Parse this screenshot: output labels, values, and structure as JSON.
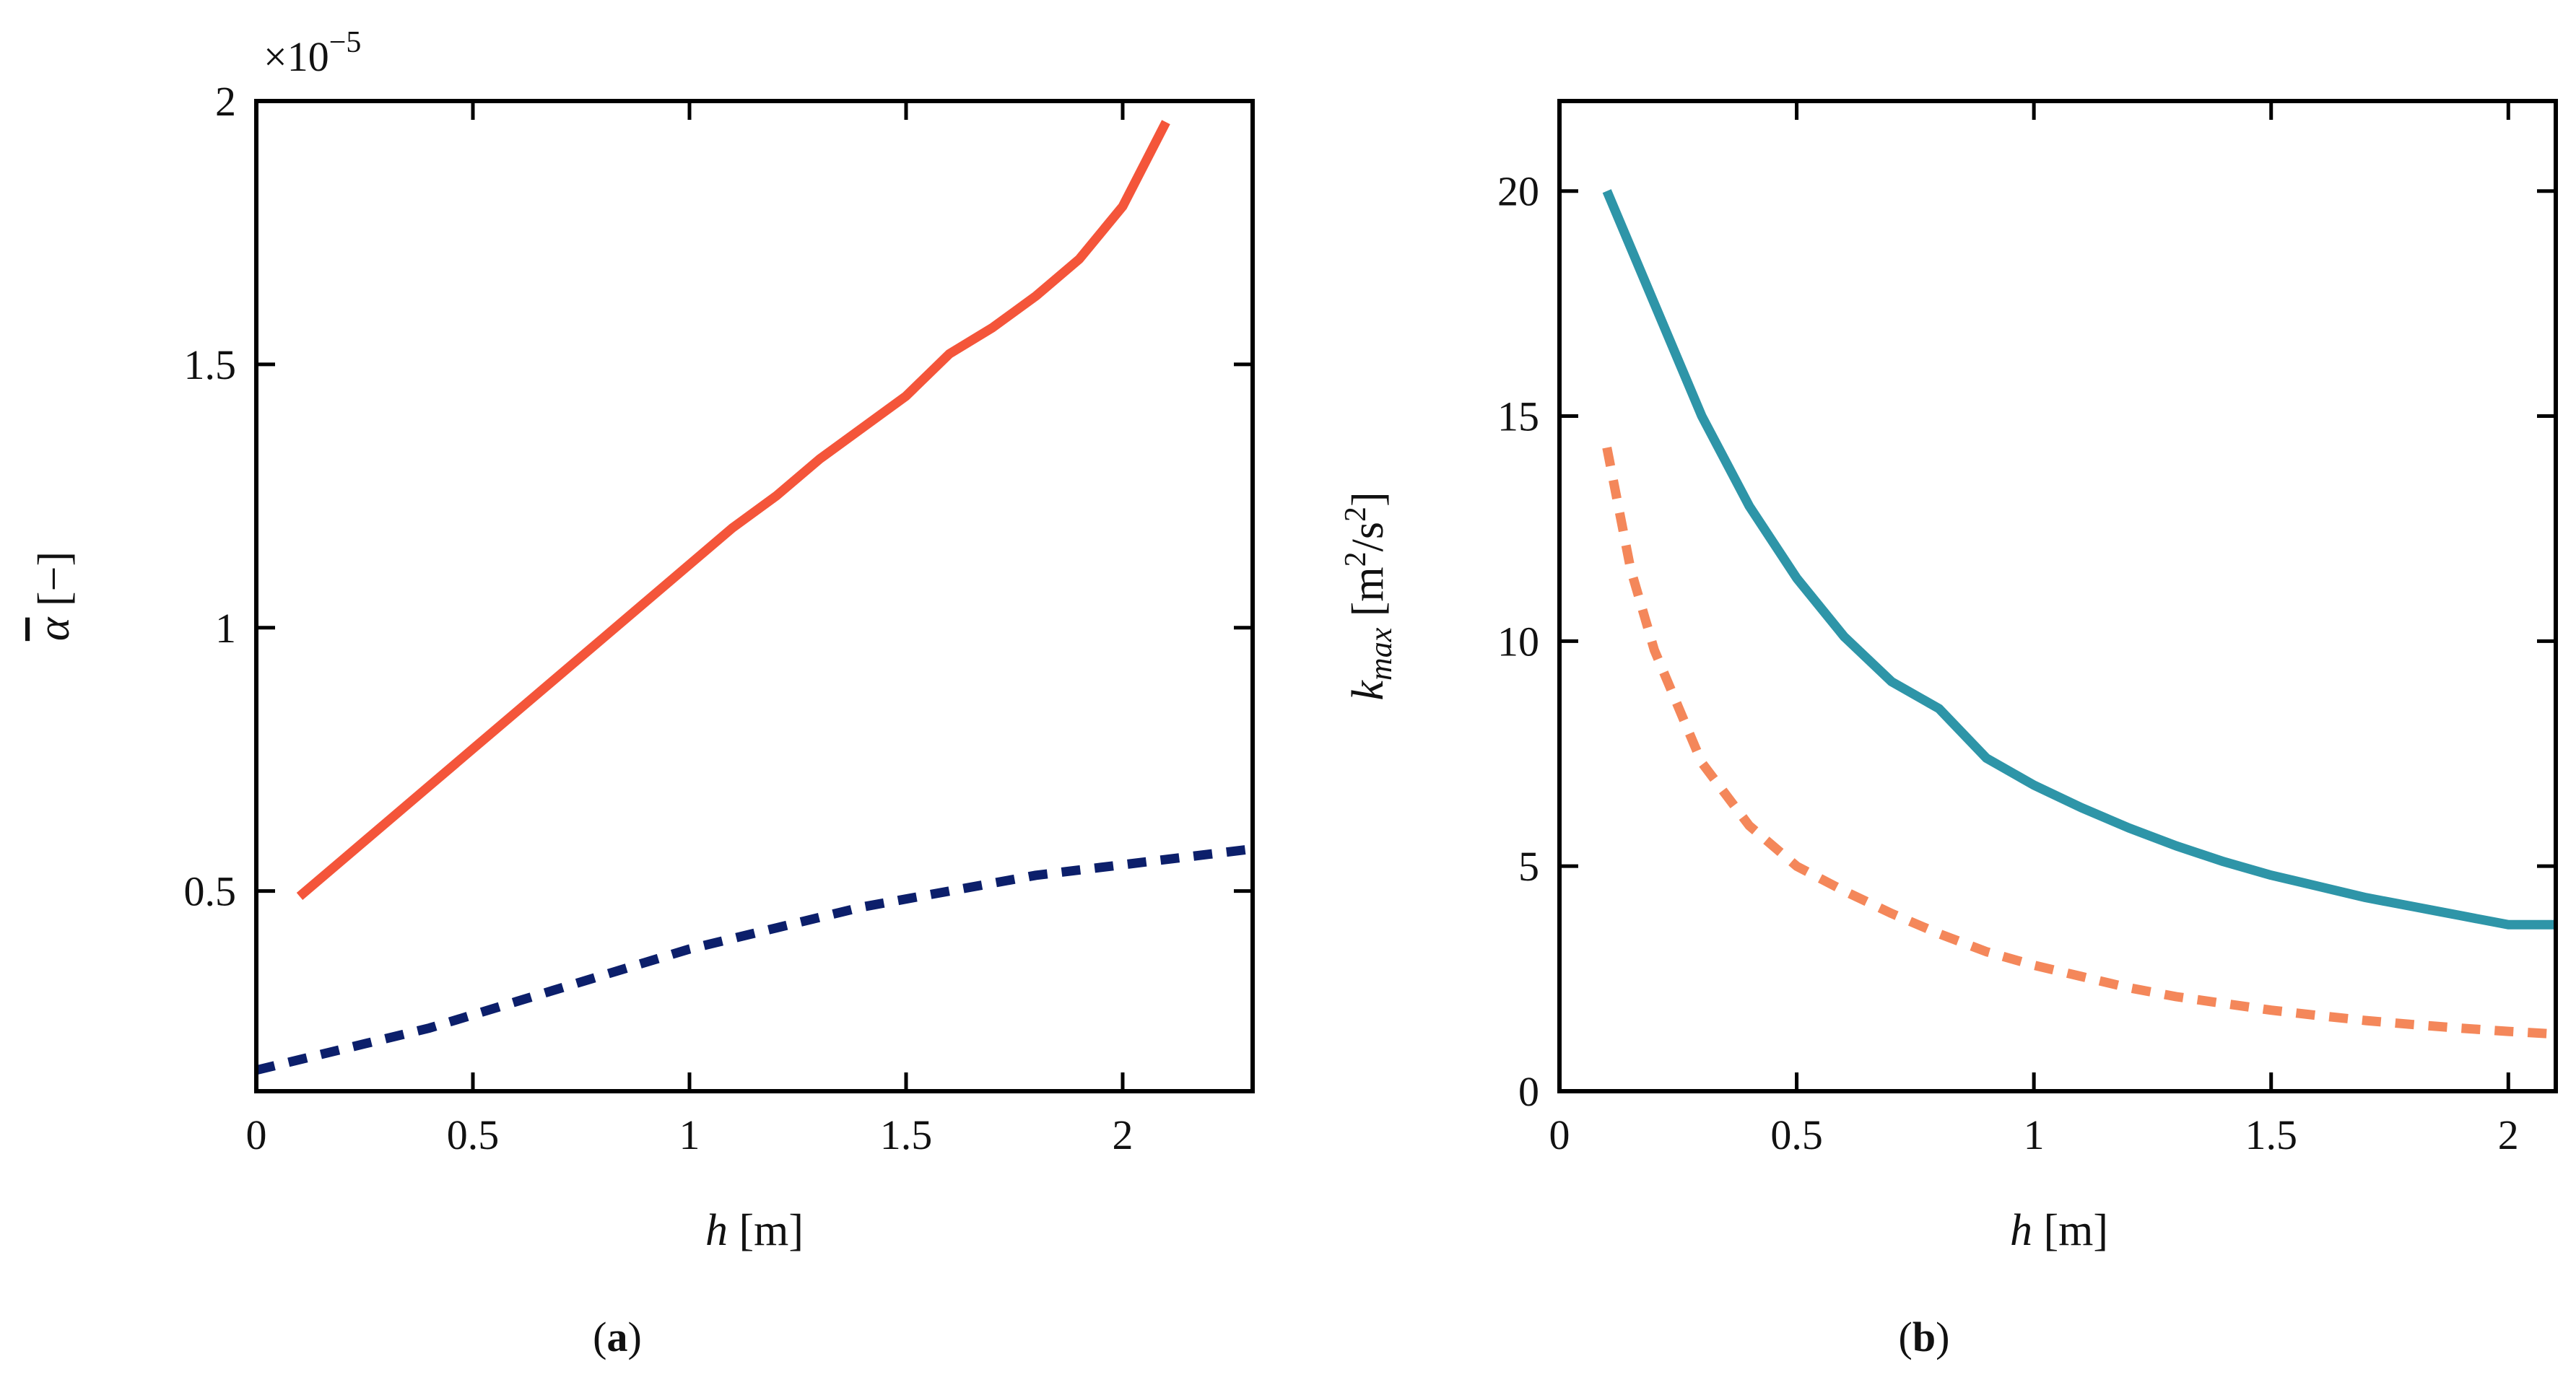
{
  "chart_data": [
    {
      "panel": "a",
      "type": "line",
      "caption_prefix": "(",
      "caption_letter": "a",
      "caption_suffix": ")",
      "xlabel_var": "h",
      "xlabel_unit": " [m]",
      "ylabel_var": "α",
      "ylabel_unit": " [−]",
      "y_multiplier": "×10",
      "y_multiplier_exp": "−5",
      "xlim": [
        0,
        2.3
      ],
      "ylim": [
        0.12,
        2.0
      ],
      "xticks": [
        0,
        0.5,
        1,
        1.5,
        2
      ],
      "xtick_labels": [
        "0",
        "0.5",
        "1",
        "1.5",
        "2"
      ],
      "yticks": [
        0.5,
        1,
        1.5,
        2
      ],
      "ytick_labels": [
        "0.5",
        "1",
        "1.5",
        "2"
      ],
      "grid": false,
      "series": [
        {
          "color": "#f4553a",
          "dash": "solid",
          "x": [
            0.1,
            0.2,
            0.3,
            0.4,
            0.5,
            0.6,
            0.7,
            0.8,
            0.9,
            1.0,
            1.1,
            1.2,
            1.3,
            1.4,
            1.5,
            1.6,
            1.7,
            1.8,
            1.9,
            2.0,
            2.1
          ],
          "y": [
            0.49,
            0.56,
            0.63,
            0.7,
            0.77,
            0.84,
            0.91,
            0.98,
            1.05,
            1.12,
            1.19,
            1.25,
            1.32,
            1.38,
            1.44,
            1.52,
            1.57,
            1.63,
            1.7,
            1.8,
            1.96
          ]
        },
        {
          "color": "#0c1f6b",
          "dash": "dashed",
          "x": [
            0.0,
            0.2,
            0.4,
            0.6,
            0.8,
            1.0,
            1.2,
            1.4,
            1.6,
            1.8,
            2.0,
            2.2,
            2.3
          ],
          "y": [
            0.16,
            0.2,
            0.24,
            0.29,
            0.34,
            0.39,
            0.43,
            0.47,
            0.5,
            0.53,
            0.55,
            0.57,
            0.58
          ]
        }
      ]
    },
    {
      "panel": "b",
      "type": "line",
      "caption_prefix": "(",
      "caption_letter": "b",
      "caption_suffix": ")",
      "xlabel_var": "h",
      "xlabel_unit": " [m]",
      "ylabel_var": "k",
      "ylabel_sub": "max",
      "ylabel_unit_a": " [m",
      "ylabel_unit_sup1": "2",
      "ylabel_unit_b": "/s",
      "ylabel_unit_sup2": "2",
      "ylabel_unit_c": "]",
      "xlim": [
        0,
        2.1
      ],
      "ylim": [
        0,
        22
      ],
      "xticks": [
        0,
        0.5,
        1,
        1.5,
        2
      ],
      "xtick_labels": [
        "0",
        "0.5",
        "1",
        "1.5",
        "2"
      ],
      "yticks": [
        0,
        5,
        10,
        15,
        20
      ],
      "ytick_labels": [
        "0",
        "5",
        "10",
        "15",
        "20"
      ],
      "grid": false,
      "series": [
        {
          "color": "#2e95a8",
          "dash": "solid",
          "x": [
            0.1,
            0.2,
            0.3,
            0.4,
            0.5,
            0.6,
            0.7,
            0.8,
            0.9,
            1.0,
            1.1,
            1.2,
            1.3,
            1.4,
            1.5,
            1.6,
            1.7,
            1.8,
            1.9,
            2.0,
            2.1
          ],
          "y": [
            20.0,
            17.5,
            15.0,
            13.0,
            11.4,
            10.1,
            9.1,
            8.5,
            7.4,
            6.8,
            6.3,
            5.85,
            5.45,
            5.1,
            4.8,
            4.55,
            4.3,
            4.1,
            3.9,
            3.7,
            3.7
          ]
        },
        {
          "color": "#f4875a",
          "dash": "dashed",
          "x": [
            0.1,
            0.15,
            0.2,
            0.3,
            0.4,
            0.5,
            0.6,
            0.7,
            0.8,
            0.9,
            1.0,
            1.1,
            1.2,
            1.3,
            1.4,
            1.5,
            1.6,
            1.7,
            1.8,
            1.9,
            2.0,
            2.1
          ],
          "y": [
            14.3,
            11.6,
            9.8,
            7.3,
            5.9,
            5.0,
            4.45,
            3.95,
            3.5,
            3.1,
            2.8,
            2.55,
            2.3,
            2.1,
            1.95,
            1.8,
            1.68,
            1.57,
            1.48,
            1.4,
            1.33,
            1.27
          ]
        }
      ]
    }
  ]
}
